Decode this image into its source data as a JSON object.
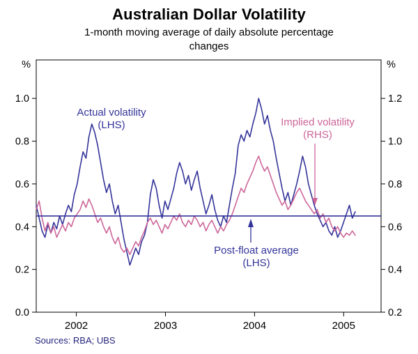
{
  "header": {
    "title": "Australian Dollar Volatility",
    "subtitle_line1": "1-month moving average of daily absolute percentage",
    "subtitle_line2": "changes"
  },
  "source": "Sources: RBA; UBS",
  "colors": {
    "actual": "#333399",
    "implied": "#cc6699",
    "axis": "#000000",
    "source_text": "#24247e"
  },
  "axes": {
    "left_unit": "%",
    "right_unit": "%",
    "left_tick_labels": [
      "0.0",
      "0.2",
      "0.4",
      "0.6",
      "0.8",
      "1.0"
    ],
    "right_tick_labels": [
      "0.2",
      "0.4",
      "0.6",
      "0.8",
      "1.0",
      "1.2"
    ],
    "x_tick_labels": [
      "2002",
      "2003",
      "2004",
      "2005"
    ]
  },
  "annotations": {
    "actual": {
      "line1": "Actual volatility",
      "line2": "(LHS)"
    },
    "implied": {
      "line1": "Implied volatility",
      "line2": "(RHS)"
    },
    "post_float": {
      "line1": "Post-float average",
      "line2": "(LHS)"
    }
  },
  "chart_data": {
    "type": "line",
    "title": "Australian Dollar Volatility",
    "subtitle": "1-month moving average of daily absolute percentage changes",
    "x_axis_range": [
      2001.55,
      2005.42
    ],
    "x_data_range": [
      2001.55,
      2005.13
    ],
    "left_ylim": [
      0,
      1.18
    ],
    "right_ylim": [
      0.2,
      1.38
    ],
    "left_ticks": [
      0.0,
      0.2,
      0.4,
      0.6,
      0.8,
      1.0
    ],
    "right_ticks": [
      0.2,
      0.4,
      0.6,
      0.8,
      1.0,
      1.2
    ],
    "x_ticks": [
      2002,
      2003,
      2004,
      2005
    ],
    "grid": false,
    "legend": "annotated-labels",
    "series": [
      {
        "id": "actual-volatility",
        "name": "Actual volatility (LHS)",
        "axis": "left",
        "color": "#333399",
        "values": [
          0.5,
          0.44,
          0.38,
          0.35,
          0.41,
          0.37,
          0.42,
          0.39,
          0.45,
          0.41,
          0.46,
          0.5,
          0.47,
          0.55,
          0.6,
          0.68,
          0.75,
          0.72,
          0.82,
          0.88,
          0.84,
          0.78,
          0.7,
          0.62,
          0.56,
          0.6,
          0.52,
          0.46,
          0.5,
          0.42,
          0.34,
          0.28,
          0.22,
          0.26,
          0.3,
          0.27,
          0.33,
          0.36,
          0.42,
          0.55,
          0.62,
          0.58,
          0.5,
          0.44,
          0.52,
          0.48,
          0.53,
          0.58,
          0.65,
          0.7,
          0.66,
          0.6,
          0.64,
          0.57,
          0.62,
          0.66,
          0.58,
          0.52,
          0.46,
          0.5,
          0.55,
          0.48,
          0.43,
          0.4,
          0.45,
          0.42,
          0.5,
          0.58,
          0.65,
          0.78,
          0.83,
          0.8,
          0.85,
          0.82,
          0.88,
          0.93,
          1.0,
          0.95,
          0.88,
          0.92,
          0.85,
          0.8,
          0.72,
          0.65,
          0.58,
          0.52,
          0.56,
          0.5,
          0.55,
          0.6,
          0.66,
          0.73,
          0.68,
          0.6,
          0.55,
          0.5,
          0.46,
          0.43,
          0.4,
          0.42,
          0.38,
          0.36,
          0.4,
          0.35,
          0.38,
          0.42,
          0.46,
          0.5,
          0.44,
          0.47
        ]
      },
      {
        "id": "implied-volatility",
        "name": "Implied volatility (RHS)",
        "axis": "right",
        "color": "#cc6699",
        "values": [
          0.68,
          0.72,
          0.64,
          0.58,
          0.62,
          0.57,
          0.6,
          0.55,
          0.58,
          0.61,
          0.58,
          0.62,
          0.6,
          0.64,
          0.66,
          0.68,
          0.72,
          0.69,
          0.73,
          0.7,
          0.66,
          0.62,
          0.64,
          0.6,
          0.57,
          0.6,
          0.55,
          0.52,
          0.55,
          0.5,
          0.48,
          0.5,
          0.47,
          0.5,
          0.53,
          0.51,
          0.55,
          0.58,
          0.62,
          0.64,
          0.61,
          0.63,
          0.6,
          0.57,
          0.61,
          0.59,
          0.62,
          0.65,
          0.63,
          0.66,
          0.62,
          0.6,
          0.63,
          0.61,
          0.65,
          0.63,
          0.6,
          0.62,
          0.58,
          0.61,
          0.63,
          0.6,
          0.57,
          0.6,
          0.58,
          0.61,
          0.63,
          0.66,
          0.7,
          0.74,
          0.78,
          0.76,
          0.8,
          0.83,
          0.86,
          0.9,
          0.93,
          0.89,
          0.86,
          0.88,
          0.84,
          0.8,
          0.76,
          0.73,
          0.7,
          0.72,
          0.68,
          0.7,
          0.73,
          0.76,
          0.78,
          0.75,
          0.72,
          0.7,
          0.68,
          0.66,
          0.68,
          0.64,
          0.66,
          0.62,
          0.64,
          0.6,
          0.58,
          0.6,
          0.57,
          0.55,
          0.57,
          0.56,
          0.58,
          0.56
        ]
      },
      {
        "id": "post-float-average",
        "name": "Post-float average (LHS)",
        "type": "hline",
        "axis": "left",
        "color": "#333399",
        "value": 0.45
      }
    ]
  }
}
